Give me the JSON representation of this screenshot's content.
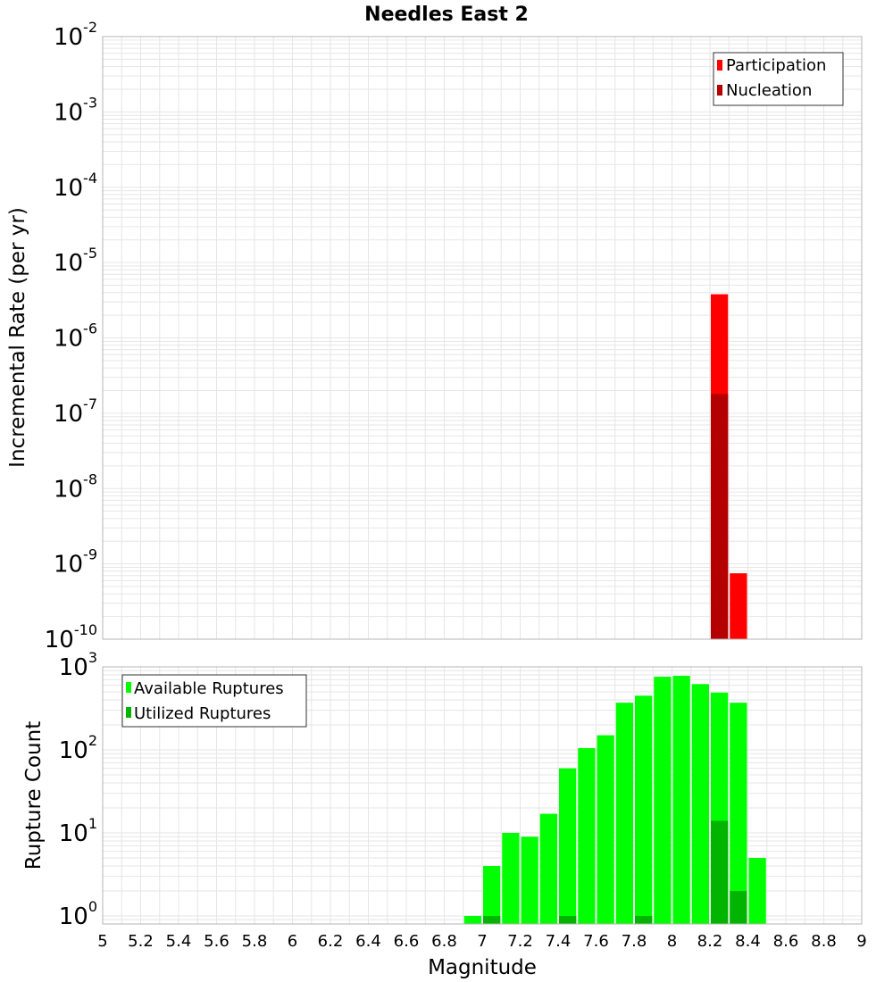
{
  "title": "Needles East 2",
  "x_axis": {
    "label": "Magnitude",
    "min": 5,
    "max": 9,
    "ticks": [
      "5",
      "5.2",
      "5.4",
      "5.6",
      "5.8",
      "6",
      "6.2",
      "6.4",
      "6.6",
      "6.8",
      "7",
      "7.2",
      "7.4",
      "7.6",
      "7.8",
      "8",
      "8.2",
      "8.4",
      "8.6",
      "8.8",
      "9"
    ]
  },
  "colors": {
    "participation": "#ff0000",
    "nucleation": "#b40000",
    "available": "#00ff00",
    "utilized": "#00b400",
    "grid": "#e6e6e6",
    "frame": "#b4b4b4"
  },
  "chart_data": [
    {
      "type": "bar",
      "name": "rate-panel",
      "title": "Needles East 2",
      "ylabel": "Incremental Rate (per yr)",
      "yscale": "log",
      "ylim": [
        1e-10,
        0.01
      ],
      "y_tick_exponents": [
        "-10",
        "-9",
        "-8",
        "-7",
        "-6",
        "-5",
        "-4",
        "-3",
        "-2"
      ],
      "legend": {
        "position": "top-right",
        "entries": [
          "Participation",
          "Nucleation"
        ]
      },
      "series": [
        {
          "name": "Participation",
          "x": [
            8.25,
            8.35
          ],
          "values": [
            3.8e-06,
            7.5e-10
          ]
        },
        {
          "name": "Nucleation",
          "x": [
            8.25
          ],
          "values": [
            1.8e-07
          ]
        }
      ]
    },
    {
      "type": "bar",
      "name": "count-panel",
      "ylabel": "Rupture Count",
      "yscale": "log",
      "ylim": [
        0.8,
        1000
      ],
      "y_tick_exponents": [
        "0",
        "1",
        "2",
        "3"
      ],
      "legend": {
        "position": "top-left",
        "entries": [
          "Available Ruptures",
          "Utilized Ruptures"
        ]
      },
      "series": [
        {
          "name": "Available Ruptures",
          "x": [
            6.95,
            7.05,
            7.15,
            7.25,
            7.35,
            7.45,
            7.55,
            7.65,
            7.75,
            7.85,
            7.95,
            8.05,
            8.15,
            8.25,
            8.35,
            8.45
          ],
          "values": [
            1,
            4,
            10,
            9,
            17,
            60,
            105,
            150,
            370,
            450,
            760,
            780,
            620,
            490,
            370,
            5
          ]
        },
        {
          "name": "Utilized Ruptures",
          "x": [
            7.05,
            7.45,
            7.85,
            8.25,
            8.35
          ],
          "values": [
            1,
            1,
            1,
            14,
            2
          ]
        }
      ]
    }
  ]
}
